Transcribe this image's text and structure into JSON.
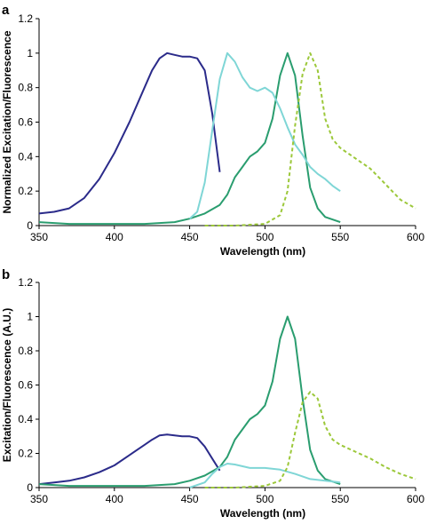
{
  "chart_data": [
    {
      "panel_label": "a",
      "type": "line",
      "xlabel": "Wavelength (nm)",
      "ylabel": "Normalized Excitation/Fluorescence",
      "xlim": [
        350,
        600
      ],
      "ylim": [
        0,
        1.2
      ],
      "xticks": [
        "350",
        "400",
        "450",
        "500",
        "550",
        "600"
      ],
      "yticks": [
        "0",
        "0.2",
        "0.4",
        "0.6",
        "0.8",
        "1",
        "1.2"
      ],
      "grid": false,
      "legend": "none",
      "series": [
        {
          "color": "#2b2b8a",
          "dash": "solid",
          "points": [
            [
              350,
              0.07
            ],
            [
              360,
              0.08
            ],
            [
              370,
              0.1
            ],
            [
              380,
              0.16
            ],
            [
              390,
              0.27
            ],
            [
              400,
              0.42
            ],
            [
              410,
              0.6
            ],
            [
              420,
              0.8
            ],
            [
              425,
              0.9
            ],
            [
              430,
              0.97
            ],
            [
              435,
              1.0
            ],
            [
              440,
              0.99
            ],
            [
              445,
              0.98
            ],
            [
              450,
              0.98
            ],
            [
              455,
              0.97
            ],
            [
              460,
              0.9
            ],
            [
              465,
              0.65
            ],
            [
              470,
              0.31
            ]
          ]
        },
        {
          "color": "#2a9d6f",
          "dash": "solid",
          "points": [
            [
              350,
              0.02
            ],
            [
              370,
              0.01
            ],
            [
              400,
              0.01
            ],
            [
              420,
              0.01
            ],
            [
              440,
              0.02
            ],
            [
              450,
              0.04
            ],
            [
              460,
              0.07
            ],
            [
              470,
              0.12
            ],
            [
              475,
              0.18
            ],
            [
              480,
              0.28
            ],
            [
              485,
              0.34
            ],
            [
              490,
              0.4
            ],
            [
              495,
              0.43
            ],
            [
              500,
              0.48
            ],
            [
              505,
              0.62
            ],
            [
              510,
              0.87
            ],
            [
              515,
              1.0
            ],
            [
              520,
              0.87
            ],
            [
              525,
              0.52
            ],
            [
              530,
              0.22
            ],
            [
              535,
              0.1
            ],
            [
              540,
              0.05
            ],
            [
              550,
              0.02
            ]
          ]
        },
        {
          "color": "#7fd6d6",
          "dash": "solid",
          "points": [
            [
              450,
              0.04
            ],
            [
              455,
              0.08
            ],
            [
              460,
              0.25
            ],
            [
              465,
              0.55
            ],
            [
              470,
              0.85
            ],
            [
              475,
              1.0
            ],
            [
              480,
              0.95
            ],
            [
              485,
              0.86
            ],
            [
              490,
              0.8
            ],
            [
              495,
              0.78
            ],
            [
              500,
              0.8
            ],
            [
              505,
              0.77
            ],
            [
              510,
              0.68
            ],
            [
              515,
              0.57
            ],
            [
              520,
              0.47
            ],
            [
              525,
              0.41
            ],
            [
              530,
              0.34
            ],
            [
              535,
              0.3
            ],
            [
              540,
              0.27
            ],
            [
              545,
              0.23
            ],
            [
              550,
              0.2
            ]
          ]
        },
        {
          "color": "#9cc83a",
          "dash": "dashed",
          "points": [
            [
              460,
              0.0
            ],
            [
              480,
              0.0
            ],
            [
              500,
              0.01
            ],
            [
              510,
              0.06
            ],
            [
              515,
              0.2
            ],
            [
              520,
              0.58
            ],
            [
              525,
              0.88
            ],
            [
              530,
              1.0
            ],
            [
              535,
              0.9
            ],
            [
              540,
              0.62
            ],
            [
              545,
              0.5
            ],
            [
              550,
              0.45
            ],
            [
              560,
              0.39
            ],
            [
              570,
              0.33
            ],
            [
              580,
              0.24
            ],
            [
              590,
              0.15
            ],
            [
              600,
              0.1
            ]
          ]
        }
      ]
    },
    {
      "panel_label": "b",
      "type": "line",
      "xlabel": "Wavelength (nm)",
      "ylabel": "Excitation/Fluorescence (A.U.)",
      "xlim": [
        350,
        600
      ],
      "ylim": [
        0,
        1.2
      ],
      "xticks": [
        "350",
        "400",
        "450",
        "500",
        "550",
        "600"
      ],
      "yticks": [
        "0",
        "0.2",
        "0.4",
        "0.6",
        "0.8",
        "1",
        "1.2"
      ],
      "grid": false,
      "legend": "none",
      "series": [
        {
          "color": "#2b2b8a",
          "dash": "solid",
          "points": [
            [
              350,
              0.02
            ],
            [
              360,
              0.03
            ],
            [
              370,
              0.04
            ],
            [
              380,
              0.06
            ],
            [
              390,
              0.09
            ],
            [
              400,
              0.13
            ],
            [
              410,
              0.19
            ],
            [
              420,
              0.25
            ],
            [
              425,
              0.28
            ],
            [
              430,
              0.305
            ],
            [
              435,
              0.31
            ],
            [
              440,
              0.305
            ],
            [
              445,
              0.3
            ],
            [
              450,
              0.3
            ],
            [
              455,
              0.29
            ],
            [
              460,
              0.24
            ],
            [
              465,
              0.17
            ],
            [
              470,
              0.1
            ]
          ]
        },
        {
          "color": "#2a9d6f",
          "dash": "solid",
          "points": [
            [
              350,
              0.02
            ],
            [
              370,
              0.01
            ],
            [
              400,
              0.01
            ],
            [
              420,
              0.01
            ],
            [
              440,
              0.02
            ],
            [
              450,
              0.04
            ],
            [
              460,
              0.07
            ],
            [
              470,
              0.12
            ],
            [
              475,
              0.18
            ],
            [
              480,
              0.28
            ],
            [
              485,
              0.34
            ],
            [
              490,
              0.4
            ],
            [
              495,
              0.43
            ],
            [
              500,
              0.48
            ],
            [
              505,
              0.62
            ],
            [
              510,
              0.87
            ],
            [
              515,
              1.0
            ],
            [
              520,
              0.87
            ],
            [
              525,
              0.52
            ],
            [
              530,
              0.22
            ],
            [
              535,
              0.1
            ],
            [
              540,
              0.05
            ],
            [
              550,
              0.02
            ]
          ]
        },
        {
          "color": "#7fd6d6",
          "dash": "solid",
          "points": [
            [
              450,
              0.0
            ],
            [
              460,
              0.03
            ],
            [
              465,
              0.08
            ],
            [
              470,
              0.12
            ],
            [
              475,
              0.14
            ],
            [
              480,
              0.135
            ],
            [
              490,
              0.115
            ],
            [
              500,
              0.115
            ],
            [
              510,
              0.105
            ],
            [
              520,
              0.08
            ],
            [
              530,
              0.05
            ],
            [
              540,
              0.04
            ],
            [
              550,
              0.03
            ]
          ]
        },
        {
          "color": "#9cc83a",
          "dash": "dashed",
          "points": [
            [
              460,
              0.0
            ],
            [
              480,
              0.0
            ],
            [
              500,
              0.01
            ],
            [
              510,
              0.04
            ],
            [
              515,
              0.12
            ],
            [
              520,
              0.32
            ],
            [
              525,
              0.5
            ],
            [
              530,
              0.56
            ],
            [
              535,
              0.52
            ],
            [
              540,
              0.36
            ],
            [
              545,
              0.28
            ],
            [
              550,
              0.25
            ],
            [
              560,
              0.21
            ],
            [
              570,
              0.17
            ],
            [
              580,
              0.12
            ],
            [
              590,
              0.08
            ],
            [
              600,
              0.05
            ]
          ]
        }
      ]
    }
  ]
}
